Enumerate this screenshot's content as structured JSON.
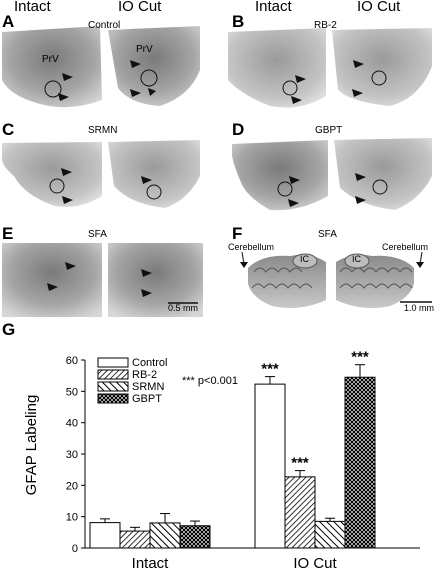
{
  "headers": {
    "left_intact": "Intact",
    "left_iocut": "IO Cut",
    "right_intact": "Intact",
    "right_iocut": "IO Cut"
  },
  "panels": [
    {
      "letter": "A",
      "condition": "Control",
      "labels": [
        "PrV",
        "PrV"
      ]
    },
    {
      "letter": "B",
      "condition": "RB-2"
    },
    {
      "letter": "C",
      "condition": "SRMN"
    },
    {
      "letter": "D",
      "condition": "GBPT"
    },
    {
      "letter": "E",
      "condition": "SFA",
      "scale": "0.5 mm"
    },
    {
      "letter": "F",
      "condition": "SFA",
      "labels": [
        "Cerebellum",
        "IC",
        "IC",
        "Cerebellum"
      ],
      "scale": "1.0 mm"
    }
  ],
  "chart_letter": "G",
  "chart_data": {
    "type": "bar",
    "categories": [
      "Intact",
      "IO Cut"
    ],
    "series": [
      {
        "name": "Control",
        "values": [
          8.1,
          52.3
        ],
        "errors": [
          1.2,
          2.4
        ],
        "pattern": "open"
      },
      {
        "name": "RB-2",
        "values": [
          5.4,
          22.7
        ],
        "errors": [
          1.2,
          2.0
        ],
        "pattern": "hatch-fine"
      },
      {
        "name": "SRMN",
        "values": [
          8.0,
          8.5
        ],
        "errors": [
          3.0,
          1.0
        ],
        "pattern": "hatch-diag"
      },
      {
        "name": "GBPT",
        "values": [
          7.1,
          54.5
        ],
        "errors": [
          1.5,
          4.0
        ],
        "pattern": "crosshatch"
      }
    ],
    "significance_marks": [
      {
        "category": "IO Cut",
        "series": "Control",
        "text": "***"
      },
      {
        "category": "IO Cut",
        "series": "RB-2",
        "text": "***"
      },
      {
        "category": "IO Cut",
        "series": "GBPT",
        "text": "***"
      }
    ],
    "annotation": "*** p<0.001",
    "ylabel": "GFAP Labeling",
    "xlabel": "",
    "ylim": [
      0,
      60
    ],
    "yticks": [
      0,
      10,
      20,
      30,
      40,
      50,
      60
    ],
    "grid": false,
    "legend_position": "top-left"
  }
}
